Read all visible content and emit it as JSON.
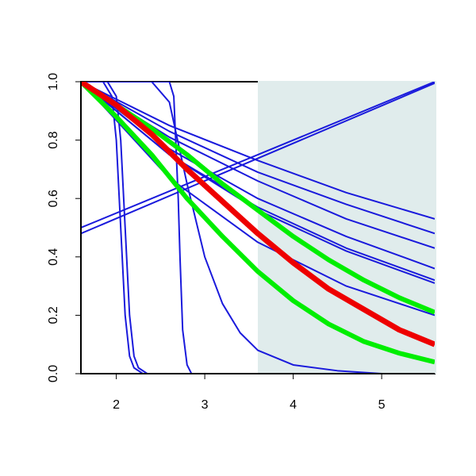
{
  "chart_data": {
    "type": "line",
    "xlim": [
      1.6,
      5.6
    ],
    "ylim": [
      0,
      1
    ],
    "xticks": [
      2,
      3,
      4,
      5
    ],
    "yticks": [
      {
        "value": 0,
        "label": "0.0"
      },
      0.2,
      0.4,
      0.6,
      0.8,
      {
        "value": 1,
        "label": "1.0"
      }
    ],
    "shade_xlim": [
      3.6,
      5.6
    ],
    "shade_color": "#e0ecec",
    "series": [
      {
        "color": "#1a1adc",
        "line_width": 2,
        "x": [
          1.6,
          2.6,
          3.6,
          4.6,
          5.6
        ],
        "values": [
          1,
          0.85,
          0.73,
          0.62,
          0.53
        ]
      },
      {
        "color": "#1a1adc",
        "line_width": 2,
        "x": [
          1.6,
          2.6,
          3.6,
          4.6,
          5.6
        ],
        "values": [
          1,
          0.83,
          0.69,
          0.58,
          0.48
        ]
      },
      {
        "color": "#1a1adc",
        "line_width": 2,
        "x": [
          1.6,
          2.6,
          3.6,
          4.6,
          5.6
        ],
        "values": [
          1,
          0.81,
          0.66,
          0.53,
          0.43
        ]
      },
      {
        "color": "#1a1adc",
        "line_width": 2,
        "x": [
          1.6,
          2.6,
          3.6,
          4.6,
          5.6
        ],
        "values": [
          1,
          0.77,
          0.6,
          0.47,
          0.36
        ]
      },
      {
        "color": "#1a1adc",
        "line_width": 2,
        "x": [
          1.6,
          2.6,
          3.6,
          4.6,
          5.6
        ],
        "values": [
          1,
          0.75,
          0.57,
          0.43,
          0.32
        ]
      },
      {
        "color": "#1a1adc",
        "line_width": 2,
        "x": [
          1.6,
          2.6,
          3.6,
          4.6,
          5.6
        ],
        "values": [
          1,
          0.75,
          0.56,
          0.42,
          0.31
        ]
      },
      {
        "color": "#1a1adc",
        "line_width": 2,
        "x": [
          1.6,
          2.6,
          3.6,
          4.6,
          5.6
        ],
        "values": [
          1,
          0.67,
          0.45,
          0.3,
          0.2
        ]
      },
      {
        "color": "#1a1adc",
        "line_width": 2,
        "x": [
          1.6,
          5.6
        ],
        "values": [
          0.5,
          1
        ]
      },
      {
        "color": "#1a1adc",
        "line_width": 2,
        "x": [
          1.6,
          5.6
        ],
        "values": [
          0.48,
          0.995
        ]
      },
      {
        "color": "#1a1adc",
        "line_width": 2,
        "x": [
          1.6,
          1.85,
          1.95,
          2.0,
          2.05,
          2.1,
          2.15,
          2.2,
          2.3,
          5.6
        ],
        "values": [
          1,
          1,
          0.95,
          0.8,
          0.5,
          0.2,
          0.06,
          0.02,
          0,
          0
        ]
      },
      {
        "color": "#1a1adc",
        "line_width": 2,
        "x": [
          1.6,
          1.9,
          2.0,
          2.05,
          2.1,
          2.15,
          2.2,
          2.25,
          2.35,
          5.6
        ],
        "values": [
          1,
          1,
          0.95,
          0.8,
          0.5,
          0.2,
          0.06,
          0.02,
          0,
          0
        ]
      },
      {
        "color": "#1a1adc",
        "line_width": 2,
        "x": [
          1.6,
          2.6,
          2.65,
          2.7,
          2.72,
          2.75,
          2.8,
          2.85,
          5.6
        ],
        "values": [
          1,
          1,
          0.95,
          0.6,
          0.4,
          0.15,
          0.03,
          0,
          0
        ]
      },
      {
        "color": "#1a1adc",
        "line_width": 2,
        "x": [
          2.4,
          2.6,
          2.8,
          3.0,
          3.2,
          3.4,
          3.6,
          4.0,
          4.5,
          5.0,
          5.6
        ],
        "values": [
          1,
          0.93,
          0.65,
          0.4,
          0.24,
          0.14,
          0.08,
          0.03,
          0.01,
          0,
          0
        ]
      },
      {
        "color": "#00ee00",
        "line_width": 6,
        "x": [
          1.6,
          2.0,
          2.4,
          2.8,
          3.2,
          3.6,
          4.0,
          4.4,
          4.8,
          5.2,
          5.6
        ],
        "values": [
          1,
          0.92,
          0.84,
          0.75,
          0.65,
          0.56,
          0.47,
          0.39,
          0.32,
          0.26,
          0.21
        ]
      },
      {
        "color": "#00ee00",
        "line_width": 6,
        "x": [
          1.6,
          2.0,
          2.4,
          2.8,
          3.2,
          3.6,
          4.0,
          4.4,
          4.8,
          5.2,
          5.6
        ],
        "values": [
          1,
          0.88,
          0.75,
          0.6,
          0.47,
          0.35,
          0.25,
          0.17,
          0.11,
          0.07,
          0.04
        ]
      },
      {
        "color": "#ee0000",
        "line_width": 7,
        "x": [
          1.6,
          2.0,
          2.4,
          2.8,
          3.2,
          3.6,
          4.0,
          4.4,
          4.8,
          5.2,
          5.6
        ],
        "values": [
          1,
          0.92,
          0.82,
          0.7,
          0.59,
          0.48,
          0.38,
          0.29,
          0.22,
          0.15,
          0.1
        ]
      }
    ]
  }
}
